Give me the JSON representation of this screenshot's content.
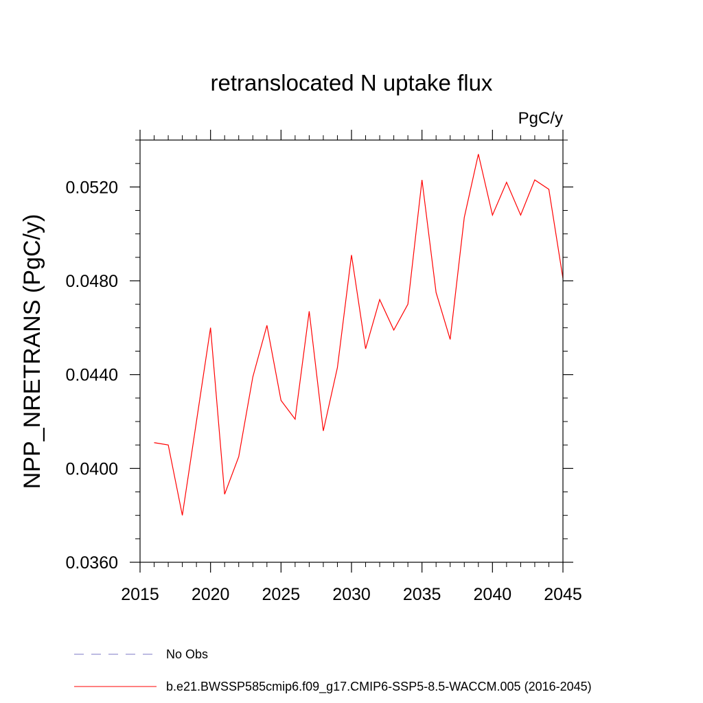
{
  "chart_data": {
    "type": "line",
    "title": "retranslocated N uptake flux",
    "units": "PgC/y",
    "xlabel": "",
    "ylabel": "NPP_NRETRANS  (PgC/y)",
    "xlim": [
      2015,
      2045
    ],
    "ylim": [
      0.036,
      0.054
    ],
    "x_ticks": [
      2015,
      2020,
      2025,
      2030,
      2035,
      2040,
      2045
    ],
    "x_tick_labels": [
      "2015",
      "2020",
      "2025",
      "2030",
      "2035",
      "2040",
      "2045"
    ],
    "y_ticks": [
      0.036,
      0.04,
      0.044,
      0.048,
      0.052
    ],
    "y_tick_labels": [
      "0.0360",
      "0.0400",
      "0.0440",
      "0.0480",
      "0.0520"
    ],
    "y_minor_step": 0.001,
    "series": [
      {
        "name": "No Obs",
        "style": "dashed",
        "color": "#7b77c4",
        "x": [],
        "values": []
      },
      {
        "name": "b.e21.BWSSP585cmip6.f09_g17.CMIP6-SSP5-8.5-WACCM.005 (2016-2045)",
        "style": "solid",
        "color": "#ff0000",
        "x": [
          2016,
          2017,
          2018,
          2019,
          2020,
          2021,
          2022,
          2023,
          2024,
          2025,
          2026,
          2027,
          2028,
          2029,
          2030,
          2031,
          2032,
          2033,
          2034,
          2035,
          2036,
          2037,
          2038,
          2039,
          2040,
          2041,
          2042,
          2043,
          2044,
          2045
        ],
        "values": [
          0.0411,
          0.041,
          0.038,
          0.042,
          0.046,
          0.0389,
          0.0405,
          0.0439,
          0.0461,
          0.0429,
          0.0421,
          0.0467,
          0.0416,
          0.0443,
          0.0491,
          0.0451,
          0.0472,
          0.0459,
          0.047,
          0.0523,
          0.0475,
          0.0455,
          0.0507,
          0.0534,
          0.0508,
          0.0522,
          0.0508,
          0.0523,
          0.0519,
          0.0481
        ]
      }
    ]
  }
}
